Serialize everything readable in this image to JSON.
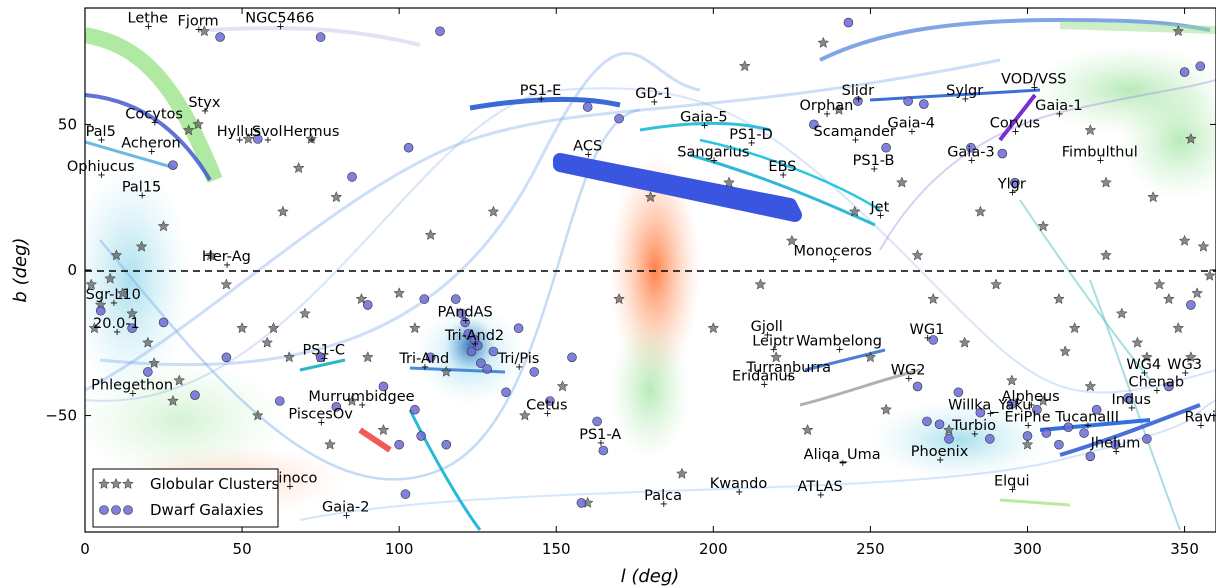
{
  "chart_data": {
    "type": "scatter",
    "xlabel": "l (deg)",
    "ylabel": "b (deg)",
    "xlim": [
      0,
      360
    ],
    "ylim": [
      -90,
      90
    ],
    "x_ticks": [
      0,
      50,
      100,
      150,
      200,
      250,
      300,
      350
    ],
    "y_ticks": [
      -50,
      0,
      50
    ],
    "grid": false,
    "legend_position": "bottom-left",
    "reference_line": {
      "y": 0,
      "style": "dashed"
    },
    "series": [
      {
        "name": "Globular Clusters",
        "marker": "star",
        "color": "#555555",
        "points": [
          [
            3,
            -20
          ],
          [
            5,
            -12
          ],
          [
            2,
            -5
          ],
          [
            8,
            -3
          ],
          [
            10,
            5
          ],
          [
            12,
            -8
          ],
          [
            15,
            -15
          ],
          [
            18,
            8
          ],
          [
            20,
            -25
          ],
          [
            22,
            -32
          ],
          [
            25,
            15
          ],
          [
            28,
            -45
          ],
          [
            30,
            -38
          ],
          [
            33,
            48
          ],
          [
            36,
            50
          ],
          [
            38,
            82
          ],
          [
            40,
            5
          ],
          [
            45,
            -5
          ],
          [
            50,
            -20
          ],
          [
            52,
            45
          ],
          [
            55,
            -50
          ],
          [
            58,
            -25
          ],
          [
            60,
            -20
          ],
          [
            63,
            20
          ],
          [
            65,
            -30
          ],
          [
            68,
            35
          ],
          [
            70,
            -15
          ],
          [
            72,
            45
          ],
          [
            75,
            -30
          ],
          [
            78,
            -60
          ],
          [
            80,
            25
          ],
          [
            85,
            -45
          ],
          [
            88,
            -10
          ],
          [
            90,
            -30
          ],
          [
            95,
            -55
          ],
          [
            100,
            -8
          ],
          [
            105,
            -20
          ],
          [
            110,
            12
          ],
          [
            115,
            -35
          ],
          [
            130,
            20
          ],
          [
            140,
            -50
          ],
          [
            152,
            -40
          ],
          [
            160,
            -80
          ],
          [
            170,
            -10
          ],
          [
            180,
            25
          ],
          [
            190,
            -70
          ],
          [
            200,
            -20
          ],
          [
            205,
            30
          ],
          [
            210,
            70
          ],
          [
            215,
            -5
          ],
          [
            220,
            -30
          ],
          [
            225,
            10
          ],
          [
            230,
            -55
          ],
          [
            235,
            78
          ],
          [
            240,
            55
          ],
          [
            245,
            20
          ],
          [
            250,
            -30
          ],
          [
            255,
            -48
          ],
          [
            260,
            30
          ],
          [
            265,
            5
          ],
          [
            270,
            -10
          ],
          [
            275,
            -55
          ],
          [
            280,
            -25
          ],
          [
            285,
            20
          ],
          [
            290,
            -5
          ],
          [
            295,
            -38
          ],
          [
            300,
            -60
          ],
          [
            305,
            15
          ],
          [
            310,
            -10
          ],
          [
            315,
            -20
          ],
          [
            320,
            -40
          ],
          [
            325,
            5
          ],
          [
            330,
            -15
          ],
          [
            335,
            -25
          ],
          [
            338,
            -30
          ],
          [
            340,
            25
          ],
          [
            342,
            -5
          ],
          [
            345,
            -10
          ],
          [
            348,
            -20
          ],
          [
            350,
            10
          ],
          [
            352,
            -30
          ],
          [
            354,
            -8
          ],
          [
            356,
            8
          ],
          [
            358,
            -2
          ],
          [
            348,
            82
          ],
          [
            352,
            45
          ],
          [
            325,
            30
          ],
          [
            320,
            48
          ],
          [
            312,
            -28
          ],
          [
            305,
            -45
          ]
        ]
      },
      {
        "name": "Dwarf Galaxies",
        "marker": "circle",
        "color": "#6a6ad8",
        "points": [
          [
            5,
            -14
          ],
          [
            15,
            -20
          ],
          [
            20,
            -35
          ],
          [
            25,
            -18
          ],
          [
            28,
            36
          ],
          [
            35,
            -43
          ],
          [
            43,
            80
          ],
          [
            45,
            -30
          ],
          [
            50,
            -70
          ],
          [
            55,
            45
          ],
          [
            62,
            -45
          ],
          [
            75,
            -30
          ],
          [
            80,
            -47
          ],
          [
            85,
            32
          ],
          [
            90,
            -12
          ],
          [
            95,
            -40
          ],
          [
            100,
            -60
          ],
          [
            102,
            -77
          ],
          [
            103,
            42
          ],
          [
            105,
            -48
          ],
          [
            107,
            -57
          ],
          [
            108,
            -10
          ],
          [
            110,
            -30
          ],
          [
            113,
            82
          ],
          [
            115,
            -60
          ],
          [
            118,
            -10
          ],
          [
            120,
            -15
          ],
          [
            121,
            -18
          ],
          [
            122,
            -22
          ],
          [
            123,
            -28
          ],
          [
            124,
            -24
          ],
          [
            125,
            -26
          ],
          [
            126,
            -32
          ],
          [
            128,
            -34
          ],
          [
            130,
            -28
          ],
          [
            134,
            -42
          ],
          [
            138,
            -20
          ],
          [
            143,
            -35
          ],
          [
            148,
            -45
          ],
          [
            155,
            -30
          ],
          [
            158,
            -80
          ],
          [
            160,
            56
          ],
          [
            163,
            -52
          ],
          [
            165,
            -62
          ],
          [
            170,
            52
          ],
          [
            232,
            50
          ],
          [
            243,
            85
          ],
          [
            246,
            58
          ],
          [
            255,
            42
          ],
          [
            262,
            58
          ],
          [
            265,
            -40
          ],
          [
            267,
            57
          ],
          [
            268,
            -52
          ],
          [
            270,
            -24
          ],
          [
            272,
            -53
          ],
          [
            275,
            -58
          ],
          [
            278,
            -42
          ],
          [
            282,
            42
          ],
          [
            285,
            -49
          ],
          [
            288,
            -58
          ],
          [
            292,
            40
          ],
          [
            295,
            -46
          ],
          [
            296,
            30
          ],
          [
            300,
            -57
          ],
          [
            303,
            -48
          ],
          [
            306,
            -56
          ],
          [
            310,
            -60
          ],
          [
            313,
            -54
          ],
          [
            318,
            -56
          ],
          [
            320,
            -64
          ],
          [
            322,
            -48
          ],
          [
            328,
            -60
          ],
          [
            332,
            -44
          ],
          [
            338,
            -58
          ],
          [
            345,
            -40
          ],
          [
            350,
            68
          ],
          [
            352,
            -12
          ],
          [
            355,
            70
          ],
          [
            75,
            80
          ]
        ]
      }
    ],
    "stream_labels": [
      {
        "text": "Lethe",
        "x": 20,
        "y": 84
      },
      {
        "text": "Fjorm",
        "x": 36,
        "y": 83
      },
      {
        "text": "NGC5466",
        "x": 62,
        "y": 84
      },
      {
        "text": "Styx",
        "x": 38,
        "y": 55
      },
      {
        "text": "Cocytos",
        "x": 22,
        "y": 51
      },
      {
        "text": "Pal5",
        "x": 5,
        "y": 45
      },
      {
        "text": "Hyllus",
        "x": 49,
        "y": 45
      },
      {
        "text": "Svol",
        "x": 58,
        "y": 45
      },
      {
        "text": "Hermus",
        "x": 72,
        "y": 45
      },
      {
        "text": "Acheron",
        "x": 21,
        "y": 41
      },
      {
        "text": "Ophiucus",
        "x": 5,
        "y": 33
      },
      {
        "text": "Pal15",
        "x": 18,
        "y": 26
      },
      {
        "text": "Her-Ag",
        "x": 45,
        "y": 2
      },
      {
        "text": "Sgr-L10",
        "x": 9,
        "y": -11
      },
      {
        "text": "20.0-1",
        "x": 10,
        "y": -21
      },
      {
        "text": "PS1-C",
        "x": 76,
        "y": -30
      },
      {
        "text": "Phlegethon",
        "x": 15,
        "y": -42
      },
      {
        "text": "PiscesOv",
        "x": 75,
        "y": -52
      },
      {
        "text": "Murrumbidgee",
        "x": 88,
        "y": -46
      },
      {
        "text": "Tri-And",
        "x": 108,
        "y": -33
      },
      {
        "text": "PAndAS",
        "x": 121,
        "y": -17
      },
      {
        "text": "Tri-And2",
        "x": 124,
        "y": -25
      },
      {
        "text": "Tri/Pis",
        "x": 138,
        "y": -33
      },
      {
        "text": "Cetus",
        "x": 147,
        "y": -49
      },
      {
        "text": "PS1-A",
        "x": 164,
        "y": -59
      },
      {
        "text": "PS1-E",
        "x": 145,
        "y": 59
      },
      {
        "text": "ACS",
        "x": 160,
        "y": 40
      },
      {
        "text": "GD-1",
        "x": 181,
        "y": 58
      },
      {
        "text": "Gaia-5",
        "x": 197,
        "y": 50
      },
      {
        "text": "PS1-D",
        "x": 212,
        "y": 44
      },
      {
        "text": "Sangarius",
        "x": 200,
        "y": 38
      },
      {
        "text": "EBS",
        "x": 222,
        "y": 33
      },
      {
        "text": "Orphan",
        "x": 236,
        "y": 54
      },
      {
        "text": "Slidr",
        "x": 246,
        "y": 59
      },
      {
        "text": "Scamander",
        "x": 245,
        "y": 45
      },
      {
        "text": "PS1-B",
        "x": 251,
        "y": 35
      },
      {
        "text": "Jet",
        "x": 253,
        "y": 19
      },
      {
        "text": "Gaia-4",
        "x": 263,
        "y": 48
      },
      {
        "text": "Sylgr",
        "x": 280,
        "y": 59
      },
      {
        "text": "VOD/VSS",
        "x": 302,
        "y": 63
      },
      {
        "text": "Gaia-1",
        "x": 310,
        "y": 54
      },
      {
        "text": "Corvus",
        "x": 296,
        "y": 48
      },
      {
        "text": "Gaia-3",
        "x": 282,
        "y": 38
      },
      {
        "text": "Fimbulthul",
        "x": 323,
        "y": 38
      },
      {
        "text": "Ylgr",
        "x": 295,
        "y": 27
      },
      {
        "text": "Monoceros",
        "x": 238,
        "y": 4
      },
      {
        "text": "WG1",
        "x": 268,
        "y": -23
      },
      {
        "text": "Wambelong",
        "x": 240,
        "y": -27
      },
      {
        "text": "Gjoll",
        "x": 217,
        "y": -22
      },
      {
        "text": "Leiptr",
        "x": 219,
        "y": -27
      },
      {
        "text": "Turranburra",
        "x": 224,
        "y": -36
      },
      {
        "text": "Eridanus",
        "x": 216,
        "y": -39
      },
      {
        "text": "WG2",
        "x": 262,
        "y": -37
      },
      {
        "text": "Willka_Yaku",
        "x": 288,
        "y": -49
      },
      {
        "text": "Alpheus",
        "x": 301,
        "y": -46
      },
      {
        "text": "Turbio",
        "x": 283,
        "y": -56
      },
      {
        "text": "EriPhe",
        "x": 300,
        "y": -53
      },
      {
        "text": "TucanaIII",
        "x": 319,
        "y": -53
      },
      {
        "text": "Indus",
        "x": 333,
        "y": -47
      },
      {
        "text": "Chenab",
        "x": 341,
        "y": -41
      },
      {
        "text": "WG4",
        "x": 337,
        "y": -35
      },
      {
        "text": "WG3",
        "x": 350,
        "y": -35
      },
      {
        "text": "Ravi",
        "x": 355,
        "y": -53
      },
      {
        "text": "Jhelum",
        "x": 328,
        "y": -62
      },
      {
        "text": "Phoenix",
        "x": 272,
        "y": -65
      },
      {
        "text": "Aliqa_Uma",
        "x": 241,
        "y": -66
      },
      {
        "text": "Elqui",
        "x": 295,
        "y": -75
      },
      {
        "text": "Palca",
        "x": 184,
        "y": -80
      },
      {
        "text": "Kwando",
        "x": 208,
        "y": -76
      },
      {
        "text": "ATLAS",
        "x": 234,
        "y": -77
      },
      {
        "text": "Orinoco",
        "x": 65,
        "y": -74
      },
      {
        "text": "Gaia-2",
        "x": 83,
        "y": -84
      }
    ]
  }
}
